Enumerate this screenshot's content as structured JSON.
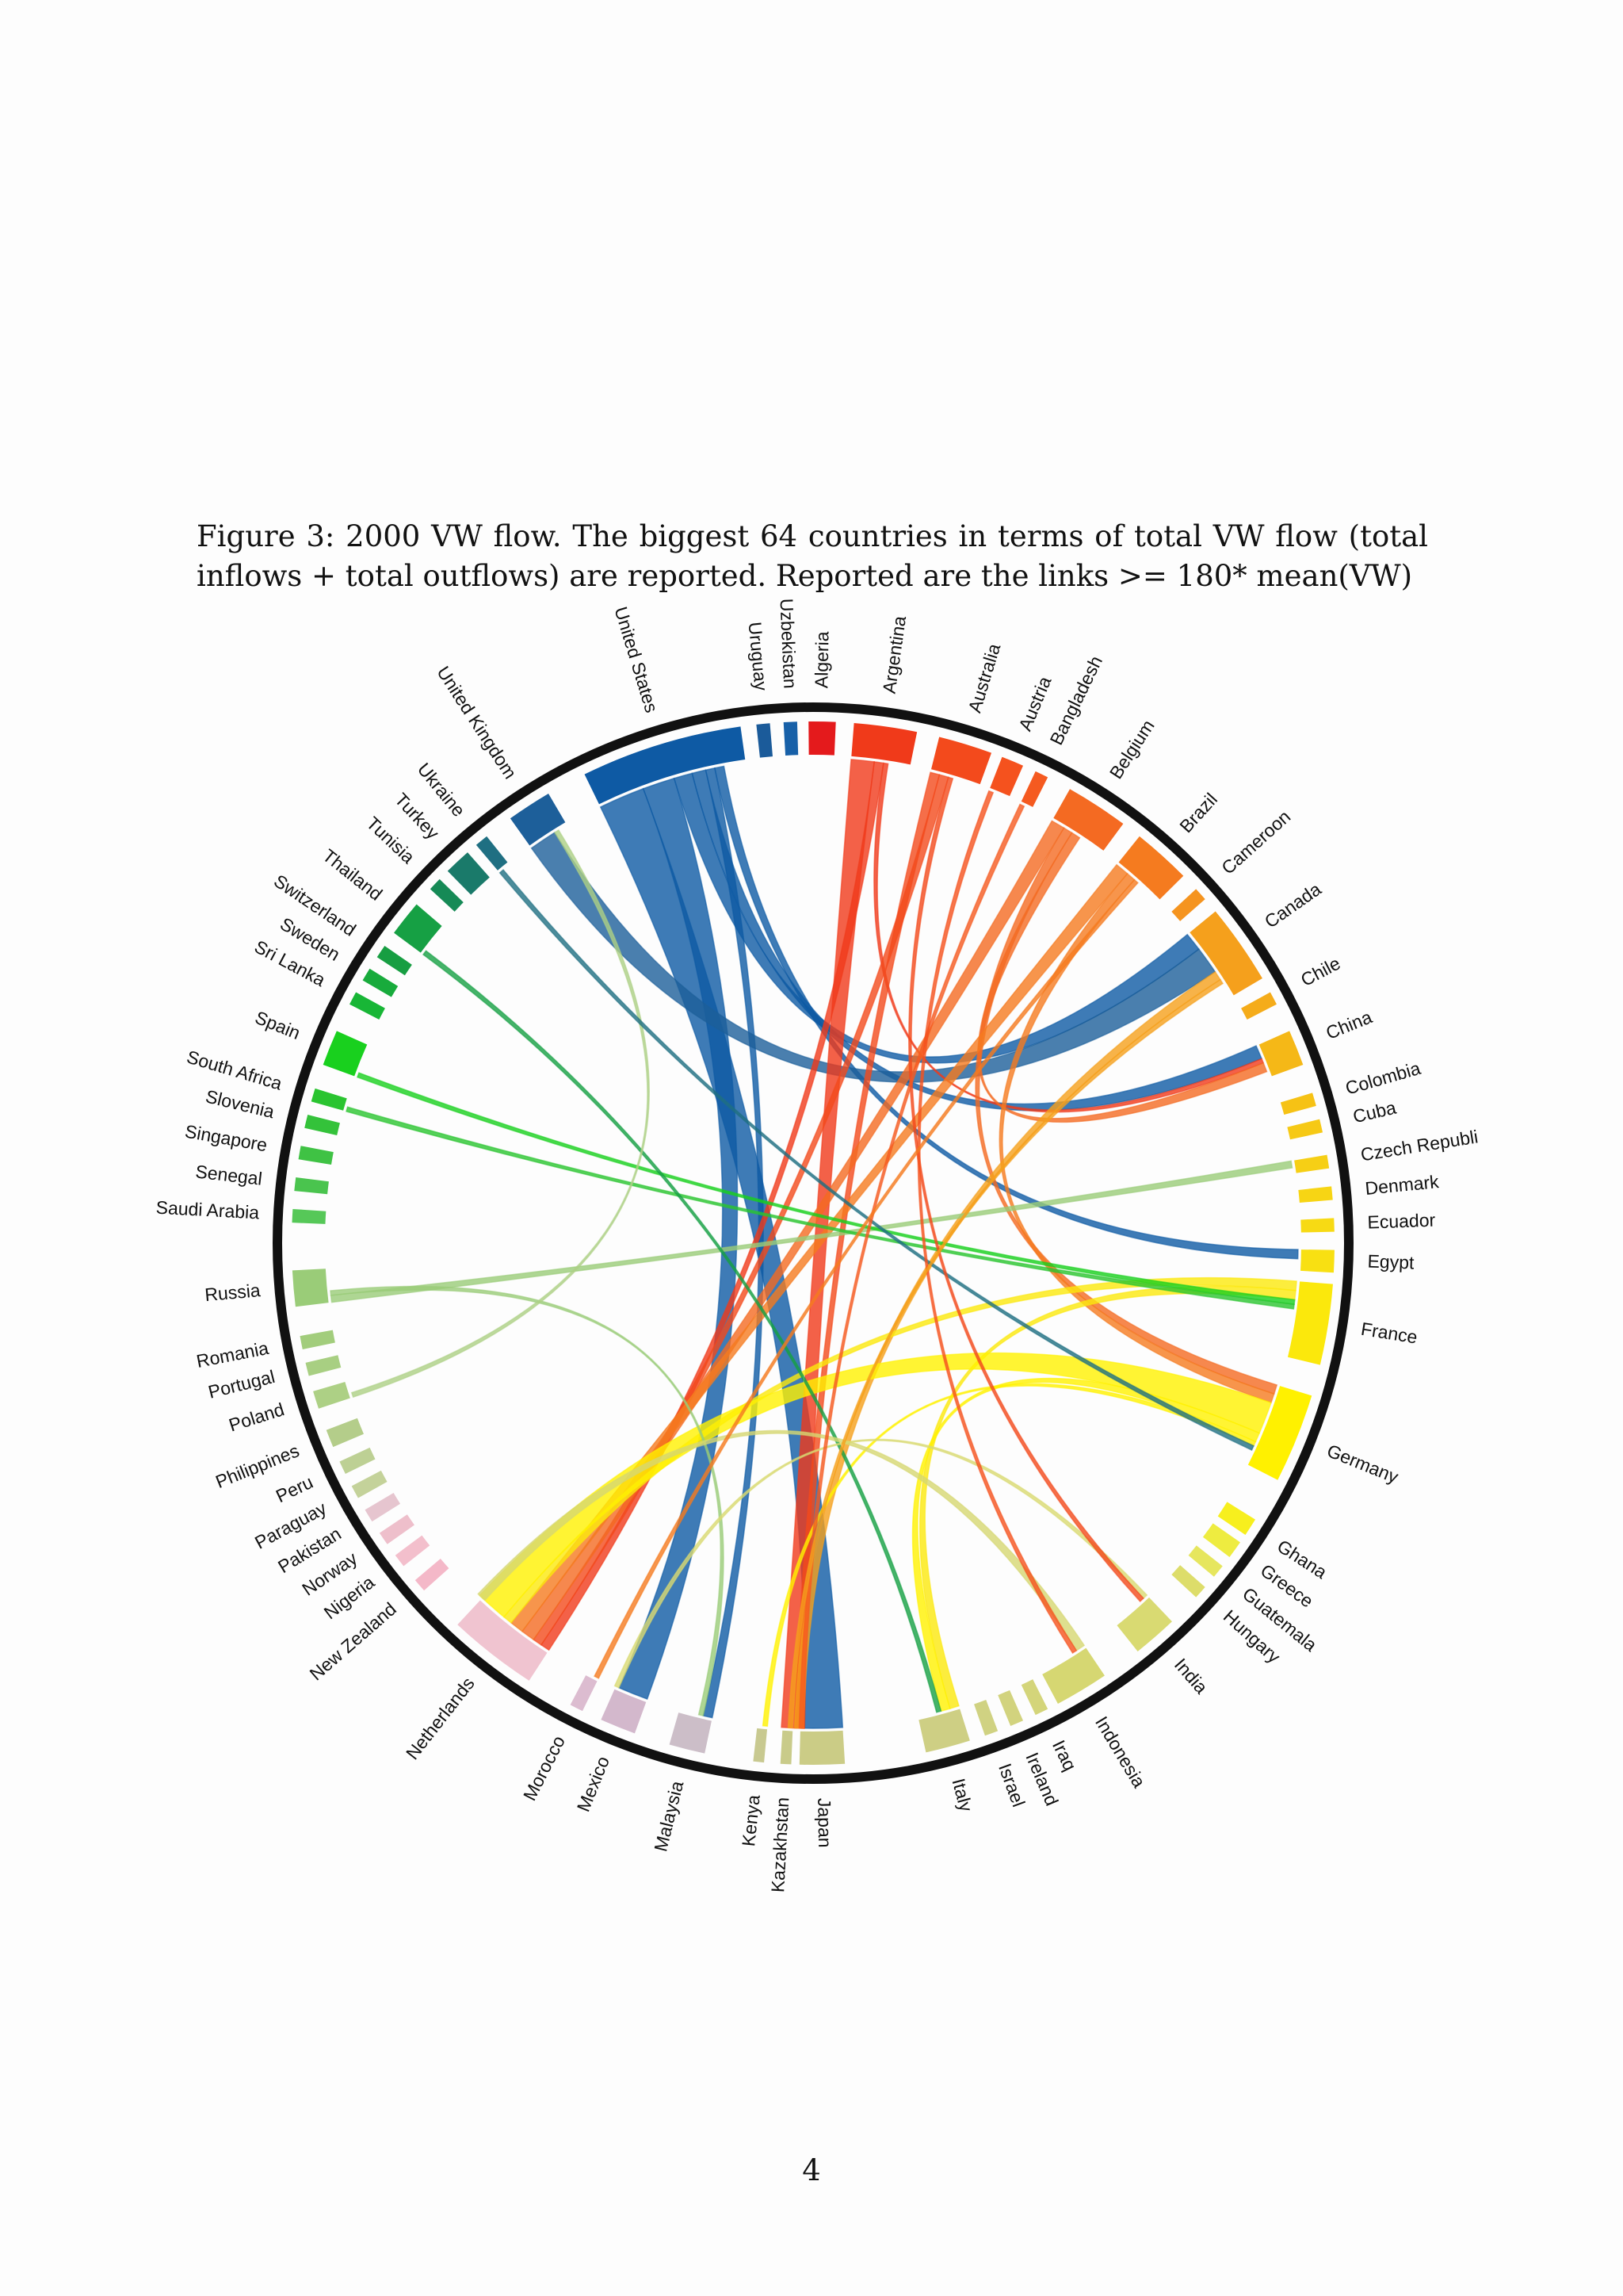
{
  "figure": {
    "caption": "Figure 3:  2000 VW flow.  The biggest 64 countries in terms of total VW flow (total inflows + total outflows) are reported. Reported are the links >= 180* mean(VW)"
  },
  "page_number": "4",
  "chart_data": {
    "type": "chord",
    "countries": [
      {
        "name": "Algeria",
        "color": "#e41a1c",
        "angle": 1,
        "span": 3
      },
      {
        "name": "Argentina",
        "color": "#f03a1a",
        "angle": 8,
        "span": 7
      },
      {
        "name": "Australia",
        "color": "#f34a1c",
        "angle": 17,
        "span": 6
      },
      {
        "name": "Austria",
        "color": "#f5521e",
        "angle": 22.5,
        "span": 2.5
      },
      {
        "name": "Bangladesh",
        "color": "#f55a20",
        "angle": 26,
        "span": 1.5
      },
      {
        "name": "Belgium",
        "color": "#f46a22",
        "angle": 33,
        "span": 7
      },
      {
        "name": "Brazil",
        "color": "#f57b1f",
        "angle": 42,
        "span": 6.5
      },
      {
        "name": "Cameroon",
        "color": "#f5941f",
        "angle": 48,
        "span": 1.5
      },
      {
        "name": "Canada",
        "color": "#f5a01c",
        "angle": 55,
        "span": 9
      },
      {
        "name": "Chile",
        "color": "#f5ac1a",
        "angle": 62,
        "span": 1.5
      },
      {
        "name": "China",
        "color": "#f5b817",
        "angle": 68,
        "span": 4
      },
      {
        "name": "Colombia",
        "color": "#f6c215",
        "angle": 74,
        "span": 1.5
      },
      {
        "name": "Cuba",
        "color": "#f6c915",
        "angle": 77,
        "span": 1.5
      },
      {
        "name": "Czech Republi",
        "color": "#f6cf15",
        "angle": 81,
        "span": 1.5
      },
      {
        "name": "Denmark",
        "color": "#f7d514",
        "angle": 84.5,
        "span": 1.5
      },
      {
        "name": "Ecuador",
        "color": "#f7da14",
        "angle": 88,
        "span": 1.5
      },
      {
        "name": "Egypt",
        "color": "#f8e012",
        "angle": 92,
        "span": 2.5
      },
      {
        "name": "France",
        "color": "#fbe80c",
        "angle": 99,
        "span": 9
      },
      {
        "name": "Germany",
        "color": "#fff100",
        "angle": 112,
        "span": 10
      },
      {
        "name": "Ghana",
        "color": "#f7ef1e",
        "angle": 123,
        "span": 2
      },
      {
        "name": "Greece",
        "color": "#eeec40",
        "angle": 126,
        "span": 2
      },
      {
        "name": "Guatemala",
        "color": "#e6e65e",
        "angle": 129,
        "span": 1.5
      },
      {
        "name": "Hungary",
        "color": "#dddd6a",
        "angle": 132,
        "span": 1.5
      },
      {
        "name": "India",
        "color": "#d9da72",
        "angle": 139,
        "span": 5
      },
      {
        "name": "Indonesia",
        "color": "#d6d772",
        "angle": 149,
        "span": 6
      },
      {
        "name": "Iraq",
        "color": "#d4d57a",
        "angle": 154,
        "span": 1.5
      },
      {
        "name": "Ireland",
        "color": "#d2d37e",
        "angle": 157,
        "span": 1.5
      },
      {
        "name": "Israel",
        "color": "#d0d282",
        "angle": 160,
        "span": 1.5
      },
      {
        "name": "Italy",
        "color": "#cecf84",
        "angle": 165,
        "span": 5
      },
      {
        "name": "Japan",
        "color": "#cbcc86",
        "angle": 179,
        "span": 5
      },
      {
        "name": "Kazakhstan",
        "color": "#c9cb8a",
        "angle": 183,
        "span": 1.2
      },
      {
        "name": "Kenya",
        "color": "#c8c990",
        "angle": 186,
        "span": 1.2
      },
      {
        "name": "Malaysia",
        "color": "#ccbec8",
        "angle": 194,
        "span": 4
      },
      {
        "name": "Mexico",
        "color": "#d3b8cc",
        "angle": 202,
        "span": 4
      },
      {
        "name": "Morocco",
        "color": "#dcbcd0",
        "angle": 207,
        "span": 1.5
      },
      {
        "name": "Netherlands",
        "color": "#f0c4d0",
        "angle": 218,
        "span": 10
      },
      {
        "name": "New Zealand",
        "color": "#f4b8c8",
        "angle": 229,
        "span": 1.5
      },
      {
        "name": "Nigeria",
        "color": "#f3bfcc",
        "angle": 232.5,
        "span": 1.5
      },
      {
        "name": "Norway",
        "color": "#eebfcb",
        "angle": 235.5,
        "span": 1.5
      },
      {
        "name": "Pakistan",
        "color": "#e6c5cf",
        "angle": 238.5,
        "span": 1.5
      },
      {
        "name": "Paraguay",
        "color": "#c4d29a",
        "angle": 241.5,
        "span": 1.5
      },
      {
        "name": "Peru",
        "color": "#bdd094",
        "angle": 244.5,
        "span": 1.5
      },
      {
        "name": "Philippines",
        "color": "#b4cd8a",
        "angle": 248,
        "span": 2
      },
      {
        "name": "Poland",
        "color": "#add085",
        "angle": 252.5,
        "span": 2
      },
      {
        "name": "Portugal",
        "color": "#a8cf82",
        "angle": 256,
        "span": 1.5
      },
      {
        "name": "Romania",
        "color": "#a2cd7c",
        "angle": 259,
        "span": 1.5
      },
      {
        "name": "Russia",
        "color": "#9acc78",
        "angle": 265,
        "span": 4
      },
      {
        "name": "Saudi Arabia",
        "color": "#56c858",
        "angle": 273,
        "span": 1.5
      },
      {
        "name": "Senegal",
        "color": "#4ac44e",
        "angle": 276.5,
        "span": 1.5
      },
      {
        "name": "Singapore",
        "color": "#3fc244",
        "angle": 280,
        "span": 1.5
      },
      {
        "name": "Slovenia",
        "color": "#34c23a",
        "angle": 283.5,
        "span": 1.5
      },
      {
        "name": "South Africa",
        "color": "#2ac430",
        "angle": 286.5,
        "span": 1.5
      },
      {
        "name": "Spain",
        "color": "#19d01e",
        "angle": 292,
        "span": 4
      },
      {
        "name": "Sri Lanka",
        "color": "#18b636",
        "angle": 298,
        "span": 1.5
      },
      {
        "name": "Sweden",
        "color": "#18ab3c",
        "angle": 301,
        "span": 1.5
      },
      {
        "name": "Switzerland",
        "color": "#179e42",
        "angle": 304,
        "span": 1.5
      },
      {
        "name": "Thailand",
        "color": "#16a044",
        "angle": 308.5,
        "span": 4
      },
      {
        "name": "Tunisia",
        "color": "#168a56",
        "angle": 313.5,
        "span": 1.5
      },
      {
        "name": "Turkey",
        "color": "#1a7a6a",
        "angle": 317,
        "span": 3
      },
      {
        "name": "Ukraine",
        "color": "#1f6f82",
        "angle": 320.5,
        "span": 1.5
      },
      {
        "name": "United Kingdom",
        "color": "#1d5f9a",
        "angle": 327,
        "span": 5
      },
      {
        "name": "United States",
        "color": "#0e5aa4",
        "angle": 343,
        "span": 18
      },
      {
        "name": "Uruguay",
        "color": "#1b5b9a",
        "angle": 354.5,
        "span": 1.5
      },
      {
        "name": "Uzbekistan",
        "color": "#1760a8",
        "angle": 357.5,
        "span": 1.5
      }
    ],
    "links": [
      {
        "from": "United States",
        "to": "Japan",
        "value": 10
      },
      {
        "from": "United States",
        "to": "Mexico",
        "value": 7
      },
      {
        "from": "United States",
        "to": "Canada",
        "value": 4
      },
      {
        "from": "United States",
        "to": "China",
        "value": 3
      },
      {
        "from": "United States",
        "to": "Malaysia",
        "value": 2
      },
      {
        "from": "United States",
        "to": "Egypt",
        "value": 2
      },
      {
        "from": "United Kingdom",
        "to": "Canada",
        "value": 6
      },
      {
        "from": "Argentina",
        "to": "Japan",
        "value": 5
      },
      {
        "from": "Argentina",
        "to": "Netherlands",
        "value": 2
      },
      {
        "from": "Argentina",
        "to": "China",
        "value": 1
      },
      {
        "from": "Australia",
        "to": "Japan",
        "value": 2
      },
      {
        "from": "Australia",
        "to": "Netherlands",
        "value": 2
      },
      {
        "from": "Belgium",
        "to": "Netherlands",
        "value": 3
      },
      {
        "from": "Belgium",
        "to": "Germany",
        "value": 2
      },
      {
        "from": "Belgium",
        "to": "China",
        "value": 2
      },
      {
        "from": "Brazil",
        "to": "Netherlands",
        "value": 3
      },
      {
        "from": "Brazil",
        "to": "Germany",
        "value": 2
      },
      {
        "from": "Canada",
        "to": "Japan",
        "value": 2
      },
      {
        "from": "France",
        "to": "Netherlands",
        "value": 2
      },
      {
        "from": "France",
        "to": "Italy",
        "value": 2
      },
      {
        "from": "Germany",
        "to": "Netherlands",
        "value": 7
      },
      {
        "from": "Germany",
        "to": "Italy",
        "value": 2
      },
      {
        "from": "Germany",
        "to": "Kenya",
        "value": 1
      },
      {
        "from": "Russia",
        "to": "Czech Republi",
        "value": 1.5
      },
      {
        "from": "Russia",
        "to": "Malaysia",
        "value": 1
      },
      {
        "from": "Spain",
        "to": "France",
        "value": 1
      },
      {
        "from": "South Africa",
        "to": "France",
        "value": 1
      },
      {
        "from": "Thailand",
        "to": "Italy",
        "value": 1
      },
      {
        "from": "Poland",
        "to": "United Kingdom",
        "value": 1
      },
      {
        "from": "Indonesia",
        "to": "Netherlands",
        "value": 2
      },
      {
        "from": "India",
        "to": "Mexico",
        "value": 1
      },
      {
        "from": "Ukraine",
        "to": "Germany",
        "value": 1
      },
      {
        "from": "Australia",
        "to": "India",
        "value": 1
      },
      {
        "from": "Bangladesh",
        "to": "Japan",
        "value": 1
      },
      {
        "from": "Austria",
        "to": "Indonesia",
        "value": 1
      },
      {
        "from": "Brazil",
        "to": "Morocco",
        "value": 1
      },
      {
        "from": "Canada",
        "to": "Kazakhstan",
        "value": 1
      }
    ]
  }
}
